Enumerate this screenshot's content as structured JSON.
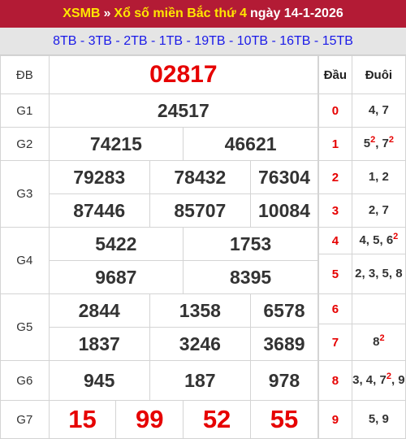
{
  "header": {
    "xsmb": "XSMB",
    "arrow": "»",
    "title": "Xổ số miền Bắc thứ 4",
    "date": "ngày 14-1-2026"
  },
  "codes": "8TB - 3TB - 2TB - 1TB - 19TB - 10TB - 16TB - 15TB",
  "prizes": {
    "db": {
      "label": "ĐB",
      "values": [
        "02817"
      ]
    },
    "g1": {
      "label": "G1",
      "values": [
        "24517"
      ]
    },
    "g2": {
      "label": "G2",
      "values": [
        "74215",
        "46621"
      ]
    },
    "g3": {
      "label": "G3",
      "values": [
        "79283",
        "78432",
        "76304",
        "87446",
        "85707",
        "10084"
      ]
    },
    "g4": {
      "label": "G4",
      "values": [
        "5422",
        "1753",
        "9687",
        "8395"
      ]
    },
    "g5": {
      "label": "G5",
      "values": [
        "2844",
        "1358",
        "6578",
        "1837",
        "3246",
        "3689"
      ]
    },
    "g6": {
      "label": "G6",
      "values": [
        "945",
        "187",
        "978"
      ]
    },
    "g7": {
      "label": "G7",
      "values": [
        "15",
        "99",
        "52",
        "55"
      ]
    }
  },
  "loto": {
    "head_dau": "Đầu",
    "head_duoi": "Đuôi",
    "rows": [
      {
        "dau": "0",
        "duoi": "4, 7"
      },
      {
        "dau": "1",
        "duoi": "5², 7²"
      },
      {
        "dau": "2",
        "duoi": "1, 2"
      },
      {
        "dau": "3",
        "duoi": "2, 7"
      },
      {
        "dau": "4",
        "duoi": "4, 5, 6²"
      },
      {
        "dau": "5",
        "duoi": "2, 3, 5, 8"
      },
      {
        "dau": "6",
        "duoi": ""
      },
      {
        "dau": "7",
        "duoi": "8²"
      },
      {
        "dau": "8",
        "duoi": "3, 4, 7², 9"
      },
      {
        "dau": "9",
        "duoi": "5, 9"
      }
    ]
  }
}
